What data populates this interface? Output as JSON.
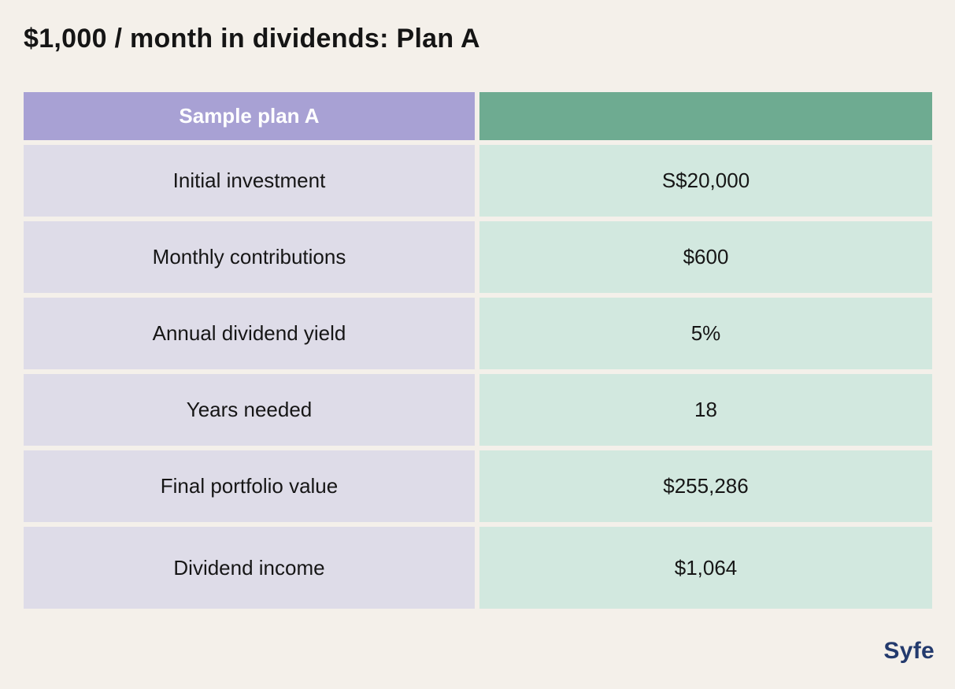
{
  "title": "$1,000 / month in dividends: Plan A",
  "brand": "Syfe",
  "table": {
    "header": {
      "label": "Sample plan A",
      "value": ""
    },
    "rows": [
      {
        "label": "Initial investment",
        "value": "S$20,000"
      },
      {
        "label": "Monthly contributions",
        "value": "$600"
      },
      {
        "label": "Annual dividend yield",
        "value": "5%"
      },
      {
        "label": "Years needed",
        "value": "18"
      },
      {
        "label": "Final portfolio value",
        "value": "$255,286"
      },
      {
        "label": "Dividend income",
        "value": "$1,064"
      }
    ]
  },
  "colors": {
    "background": "#f4f0ea",
    "header_label_bg": "#a8a1d4",
    "header_value_bg": "#6eab91",
    "row_label_bg": "#dedce8",
    "row_value_bg": "#d2e8df",
    "title_text": "#151515",
    "brand_text": "#233a6d"
  },
  "chart_data": {
    "type": "table",
    "title": "$1,000 / month in dividends: Plan A",
    "columns": [
      "Sample plan A",
      ""
    ],
    "rows": [
      [
        "Initial investment",
        "S$20,000"
      ],
      [
        "Monthly contributions",
        "$600"
      ],
      [
        "Annual dividend yield",
        "5%"
      ],
      [
        "Years needed",
        "18"
      ],
      [
        "Final portfolio value",
        "$255,286"
      ],
      [
        "Dividend income",
        "$1,064"
      ]
    ],
    "layout": {
      "header_row_colors": [
        "#a8a1d4",
        "#6eab91"
      ],
      "body_row_colors": [
        "#dedce8",
        "#d2e8df"
      ],
      "grid": false,
      "legend": "none"
    }
  }
}
